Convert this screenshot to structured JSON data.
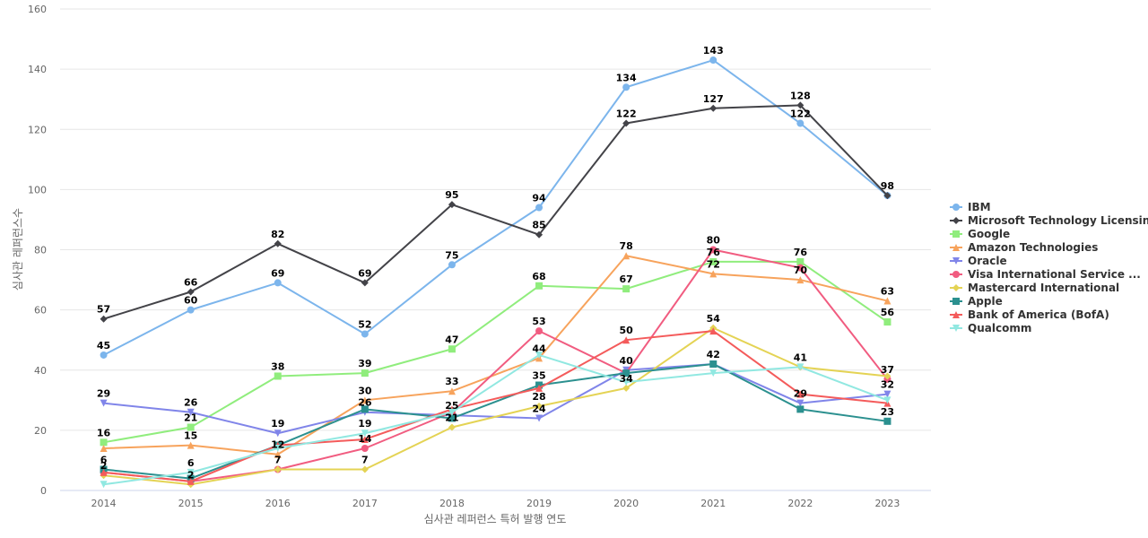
{
  "chart_data": {
    "type": "line",
    "xlabel": "심사관 레퍼런스 특허 발행 연도",
    "ylabel": "심사관 레퍼런스수",
    "x": [
      "2014",
      "2015",
      "2016",
      "2017",
      "2018",
      "2019",
      "2020",
      "2021",
      "2022",
      "2023"
    ],
    "ylim": [
      0,
      160
    ],
    "yticks": [
      0,
      20,
      40,
      60,
      80,
      100,
      120,
      140,
      160
    ],
    "grid": true,
    "legend_position": "right",
    "series": [
      {
        "name": "IBM",
        "color": "#7cb5ec",
        "marker": "circle",
        "values": [
          45,
          60,
          69,
          52,
          75,
          94,
          134,
          143,
          122,
          98
        ]
      },
      {
        "name": "Microsoft Technology Licensing",
        "color": "#434348",
        "marker": "diamond",
        "values": [
          57,
          66,
          82,
          69,
          95,
          85,
          122,
          127,
          128,
          98
        ]
      },
      {
        "name": "Google",
        "color": "#90ed7d",
        "marker": "square",
        "values": [
          16,
          21,
          38,
          39,
          47,
          68,
          67,
          76,
          76,
          56
        ]
      },
      {
        "name": "Amazon Technologies",
        "color": "#f7a35c",
        "marker": "triangle",
        "values": [
          14,
          15,
          12,
          30,
          33,
          44,
          78,
          72,
          70,
          63
        ]
      },
      {
        "name": "Oracle",
        "color": "#8085e9",
        "marker": "triangle-down",
        "values": [
          29,
          26,
          19,
          26,
          25,
          24,
          40,
          42,
          29,
          32
        ]
      },
      {
        "name": "Visa International Service ...",
        "color": "#f15c80",
        "marker": "circle",
        "values": [
          6,
          3,
          7,
          14,
          26,
          53,
          39,
          80,
          74,
          37
        ]
      },
      {
        "name": "Mastercard International",
        "color": "#e4d354",
        "marker": "diamond",
        "values": [
          5,
          2,
          7,
          7,
          21,
          28,
          34,
          54,
          41,
          38
        ]
      },
      {
        "name": "Apple",
        "color": "#2b908f",
        "marker": "square",
        "values": [
          7,
          4,
          15,
          27,
          24,
          35,
          39,
          42,
          27,
          23
        ]
      },
      {
        "name": "Bank of America (BofA)",
        "color": "#f45b5b",
        "marker": "triangle",
        "values": [
          6,
          3,
          15,
          17,
          27,
          34,
          50,
          53,
          32,
          29
        ]
      },
      {
        "name": "Qualcomm",
        "color": "#91e8e1",
        "marker": "triangle-down",
        "values": [
          2,
          6,
          14,
          19,
          26,
          45,
          36,
          39,
          41,
          30
        ]
      }
    ],
    "data_labels": [
      {
        "x": "2014",
        "y": 57,
        "text": "57"
      },
      {
        "x": "2014",
        "y": 45,
        "text": "45"
      },
      {
        "x": "2014",
        "y": 29,
        "text": "29"
      },
      {
        "x": "2014",
        "y": 16,
        "text": "16"
      },
      {
        "x": "2014",
        "y": 7,
        "text": "6"
      },
      {
        "x": "2014",
        "y": 5,
        "text": "2"
      },
      {
        "x": "2015",
        "y": 66,
        "text": "66"
      },
      {
        "x": "2015",
        "y": 60,
        "text": "60"
      },
      {
        "x": "2015",
        "y": 26,
        "text": "26"
      },
      {
        "x": "2015",
        "y": 21,
        "text": "21"
      },
      {
        "x": "2015",
        "y": 15,
        "text": "15"
      },
      {
        "x": "2015",
        "y": 6,
        "text": "6"
      },
      {
        "x": "2015",
        "y": 2,
        "text": "2"
      },
      {
        "x": "2016",
        "y": 82,
        "text": "82"
      },
      {
        "x": "2016",
        "y": 69,
        "text": "69"
      },
      {
        "x": "2016",
        "y": 38,
        "text": "38"
      },
      {
        "x": "2016",
        "y": 19,
        "text": "19"
      },
      {
        "x": "2016",
        "y": 12,
        "text": "12"
      },
      {
        "x": "2016",
        "y": 7,
        "text": "7"
      },
      {
        "x": "2017",
        "y": 69,
        "text": "69"
      },
      {
        "x": "2017",
        "y": 52,
        "text": "52"
      },
      {
        "x": "2017",
        "y": 39,
        "text": "39"
      },
      {
        "x": "2017",
        "y": 30,
        "text": "30"
      },
      {
        "x": "2017",
        "y": 26,
        "text": "26"
      },
      {
        "x": "2017",
        "y": 19,
        "text": "19"
      },
      {
        "x": "2017",
        "y": 14,
        "text": "14"
      },
      {
        "x": "2017",
        "y": 7,
        "text": "7"
      },
      {
        "x": "2018",
        "y": 95,
        "text": "95"
      },
      {
        "x": "2018",
        "y": 75,
        "text": "75"
      },
      {
        "x": "2018",
        "y": 47,
        "text": "47"
      },
      {
        "x": "2018",
        "y": 33,
        "text": "33"
      },
      {
        "x": "2018",
        "y": 25,
        "text": "25"
      },
      {
        "x": "2018",
        "y": 21,
        "text": "21"
      },
      {
        "x": "2019",
        "y": 94,
        "text": "94"
      },
      {
        "x": "2019",
        "y": 85,
        "text": "85"
      },
      {
        "x": "2019",
        "y": 68,
        "text": "68"
      },
      {
        "x": "2019",
        "y": 53,
        "text": "53"
      },
      {
        "x": "2019",
        "y": 44,
        "text": "44"
      },
      {
        "x": "2019",
        "y": 35,
        "text": "35"
      },
      {
        "x": "2019",
        "y": 28,
        "text": "28"
      },
      {
        "x": "2019",
        "y": 24,
        "text": "24"
      },
      {
        "x": "2020",
        "y": 134,
        "text": "134"
      },
      {
        "x": "2020",
        "y": 122,
        "text": "122"
      },
      {
        "x": "2020",
        "y": 78,
        "text": "78"
      },
      {
        "x": "2020",
        "y": 67,
        "text": "67"
      },
      {
        "x": "2020",
        "y": 50,
        "text": "50"
      },
      {
        "x": "2020",
        "y": 40,
        "text": "40"
      },
      {
        "x": "2020",
        "y": 34,
        "text": "34"
      },
      {
        "x": "2021",
        "y": 143,
        "text": "143"
      },
      {
        "x": "2021",
        "y": 127,
        "text": "127"
      },
      {
        "x": "2021",
        "y": 80,
        "text": "80"
      },
      {
        "x": "2021",
        "y": 76,
        "text": "76"
      },
      {
        "x": "2021",
        "y": 72,
        "text": "72"
      },
      {
        "x": "2021",
        "y": 54,
        "text": "54"
      },
      {
        "x": "2021",
        "y": 42,
        "text": "42"
      },
      {
        "x": "2022",
        "y": 128,
        "text": "128"
      },
      {
        "x": "2022",
        "y": 122,
        "text": "122"
      },
      {
        "x": "2022",
        "y": 76,
        "text": "76"
      },
      {
        "x": "2022",
        "y": 70,
        "text": "70"
      },
      {
        "x": "2022",
        "y": 41,
        "text": "41"
      },
      {
        "x": "2022",
        "y": 29,
        "text": "29"
      },
      {
        "x": "2023",
        "y": 98,
        "text": "98"
      },
      {
        "x": "2023",
        "y": 63,
        "text": "63"
      },
      {
        "x": "2023",
        "y": 56,
        "text": "56"
      },
      {
        "x": "2023",
        "y": 37,
        "text": "37"
      },
      {
        "x": "2023",
        "y": 32,
        "text": "32"
      },
      {
        "x": "2023",
        "y": 23,
        "text": "23"
      }
    ]
  }
}
